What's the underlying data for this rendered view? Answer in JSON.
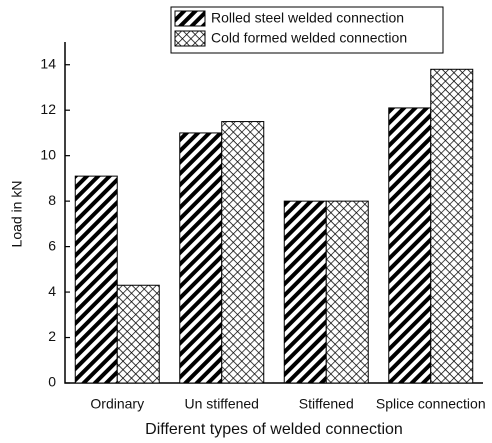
{
  "chart_data": {
    "type": "bar",
    "categories": [
      "Ordinary",
      "Un stiffened",
      "Stiffened",
      "Splice connection"
    ],
    "series": [
      {
        "name": "Rolled steel welded connection",
        "color": "#000000",
        "hatch": "diagonal",
        "values": [
          9.1,
          11,
          8,
          12.1
        ]
      },
      {
        "name": "Cold formed welded connection",
        "color": "#000000",
        "hatch": "cross",
        "values": [
          4.3,
          11.5,
          8,
          13.8
        ]
      }
    ],
    "xlabel": "Different types of welded connection",
    "ylabel": "Load in kN",
    "ylim": [
      0,
      15
    ],
    "yticks": [
      0,
      2,
      4,
      6,
      8,
      10,
      12,
      14
    ],
    "legend": "top-right"
  }
}
